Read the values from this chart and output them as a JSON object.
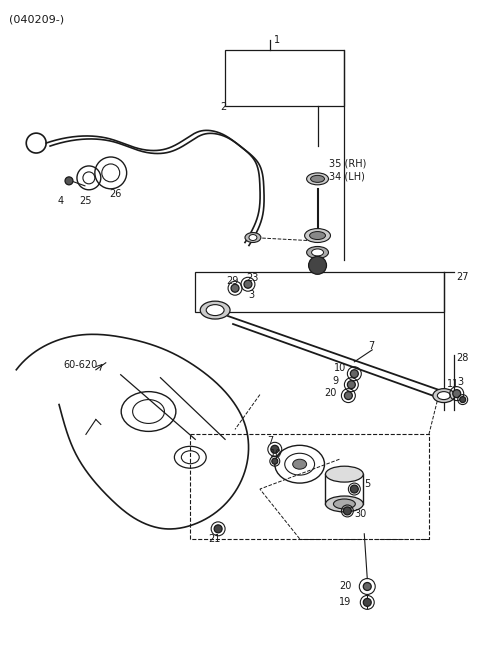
{
  "bg_color": "#ffffff",
  "fg_color": "#1a1a1a",
  "fig_width": 4.8,
  "fig_height": 6.55,
  "dpi": 100
}
